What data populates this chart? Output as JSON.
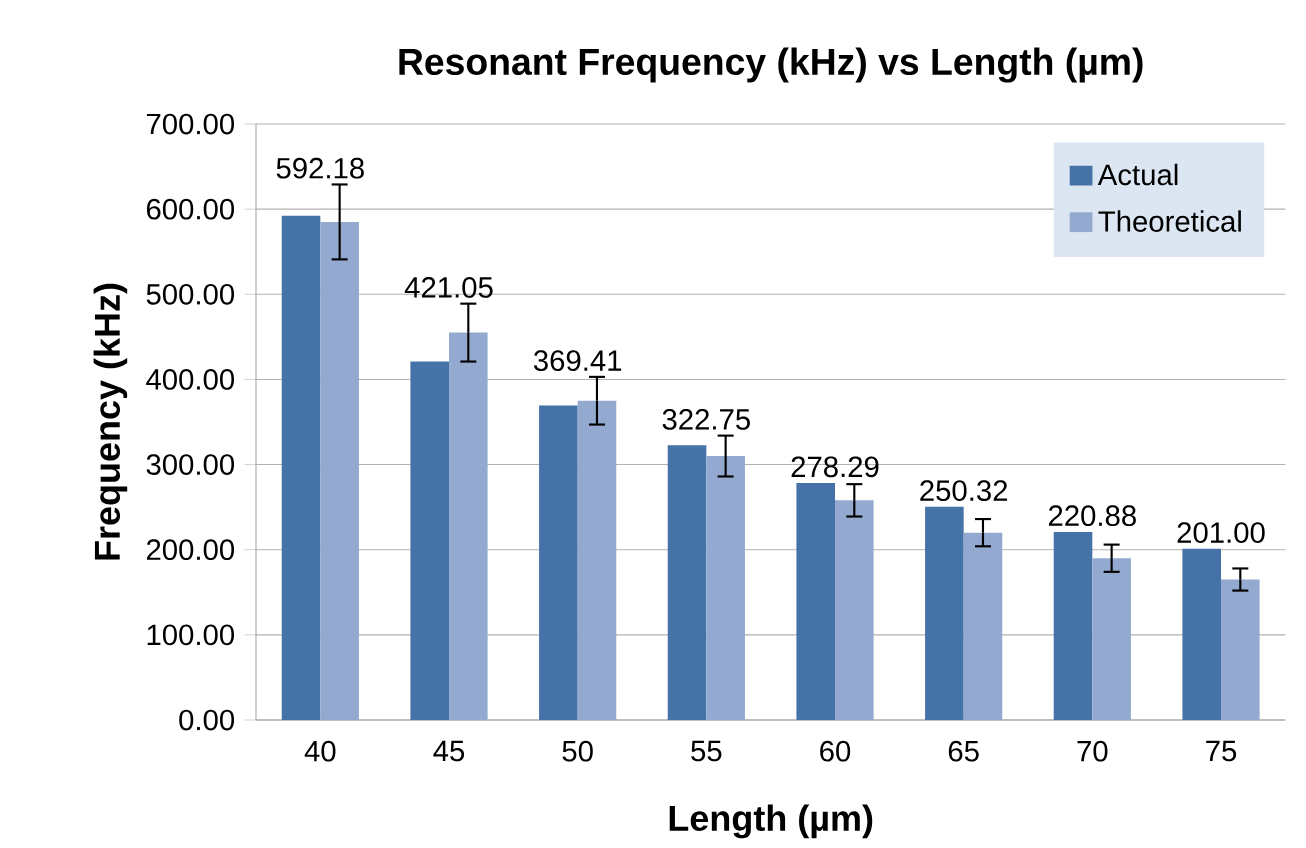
{
  "chart_data": {
    "type": "bar",
    "title": "Resonant Frequency (kHz) vs Length (µm)",
    "xlabel": "Length (µm)",
    "ylabel": "Frequency (kHz)",
    "categories": [
      "40",
      "45",
      "50",
      "55",
      "60",
      "65",
      "70",
      "75"
    ],
    "series": [
      {
        "name": "Actual",
        "color": "#4572a7",
        "values": [
          592.18,
          421.05,
          369.41,
          322.75,
          278.29,
          250.32,
          220.88,
          201.0
        ],
        "value_labels": [
          "592.18",
          "421.05",
          "369.41",
          "322.75",
          "278.29",
          "250.32",
          "220.88",
          "201.00"
        ]
      },
      {
        "name": "Theoretical",
        "color": "#93a9cf",
        "values": [
          585,
          455,
          375,
          310,
          258,
          220,
          190,
          165
        ],
        "errors": [
          44,
          34,
          28,
          24,
          19,
          16,
          16,
          13
        ]
      }
    ],
    "ylim": [
      0,
      700
    ],
    "yticks": [
      {
        "value": 0,
        "label": "0.00"
      },
      {
        "value": 100,
        "label": "100.00"
      },
      {
        "value": 200,
        "label": "200.00"
      },
      {
        "value": 300,
        "label": "300.00"
      },
      {
        "value": 400,
        "label": "400.00"
      },
      {
        "value": 500,
        "label": "500.00"
      },
      {
        "value": 600,
        "label": "600.00"
      },
      {
        "value": 700,
        "label": "700.00"
      }
    ],
    "grid": "y",
    "legend": "top right"
  }
}
